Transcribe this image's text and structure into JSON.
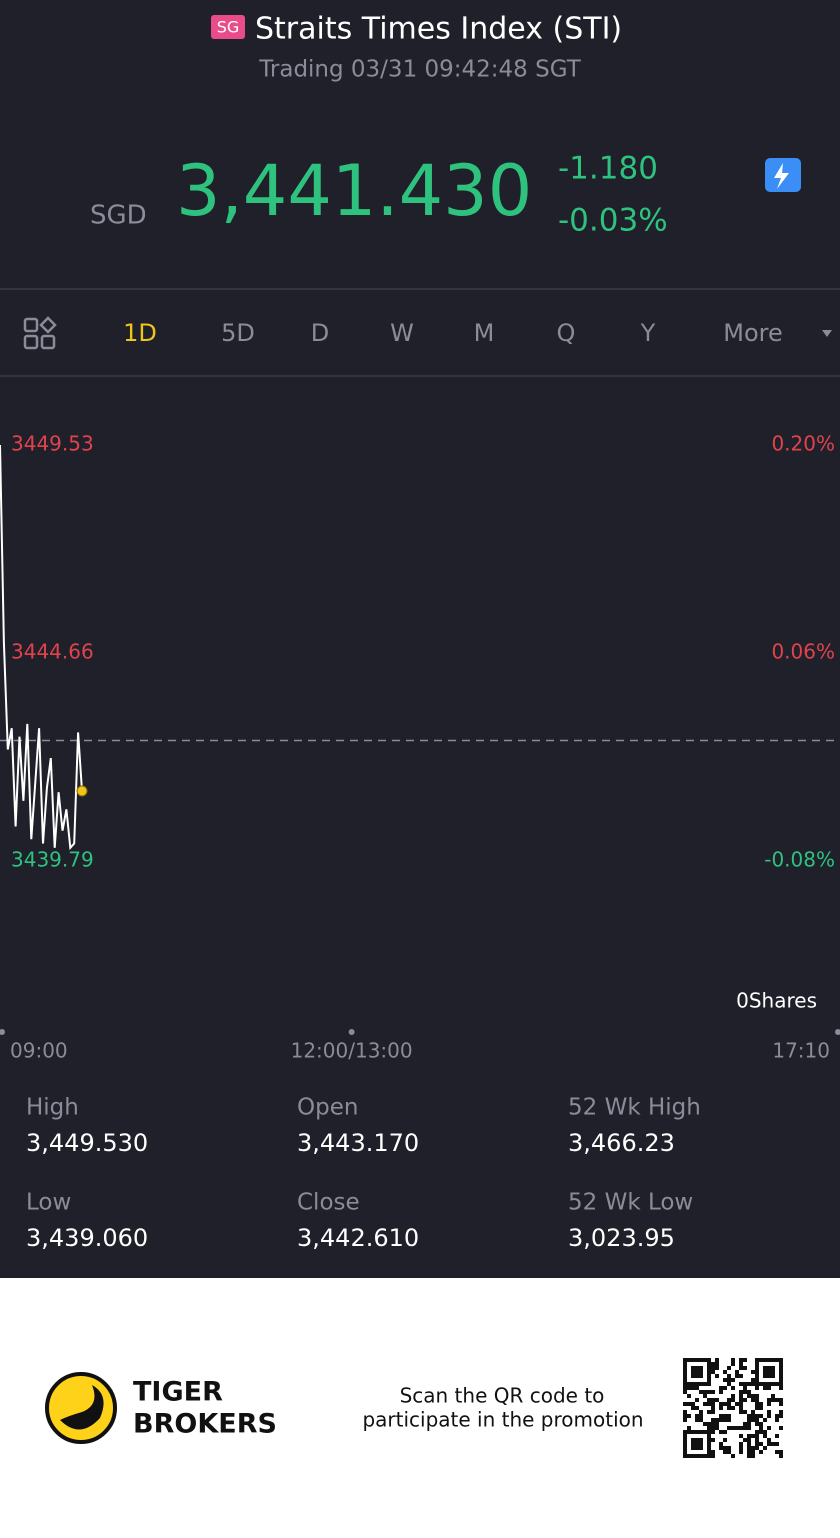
{
  "header": {
    "badge": "SG",
    "title": "Straits Times Index (STI)",
    "status": "Trading 03/31 09:42:48 SGT"
  },
  "quote": {
    "currency": "SGD",
    "price": "3,441.430",
    "change": "-1.180",
    "change_pct": "-0.03%"
  },
  "tabs": [
    "1D",
    "5D",
    "D",
    "W",
    "M",
    "Q",
    "Y",
    "More"
  ],
  "active_tab": 0,
  "chart_data": {
    "type": "line",
    "x": [
      "09:00",
      "09:02",
      "09:04",
      "09:06",
      "09:08",
      "09:10",
      "09:12",
      "09:14",
      "09:16",
      "09:18",
      "09:20",
      "09:22",
      "09:24",
      "09:26",
      "09:28",
      "09:30",
      "09:32",
      "09:34",
      "09:36",
      "09:38",
      "09:40",
      "09:42"
    ],
    "values": [
      3449.53,
      3444.9,
      3442.4,
      3442.9,
      3440.6,
      3442.7,
      3441.2,
      3443.0,
      3440.3,
      3441.6,
      3442.9,
      3440.2,
      3441.5,
      3442.2,
      3440.1,
      3441.4,
      3440.5,
      3441.0,
      3440.1,
      3440.2,
      3442.8,
      3441.43
    ],
    "color": "#ffffff",
    "baseline": 3442.61,
    "ylim": [
      3439.79,
      3449.53
    ],
    "yticks": [
      3449.53,
      3444.66,
      3439.79
    ],
    "y2lim": [
      -0.08,
      0.2
    ],
    "y2ticks": [
      {
        "value": 0.2,
        "label": "0.20%"
      },
      {
        "value": 0.06,
        "label": "0.06%"
      },
      {
        "value": -0.08,
        "label": "-0.08%"
      }
    ],
    "xticks": [
      "09:00",
      "12:00/13:00",
      "17:10"
    ],
    "volume_label": "0Shares"
  },
  "stats": [
    {
      "label": "High",
      "value": "3,449.530"
    },
    {
      "label": "Open",
      "value": "3,443.170"
    },
    {
      "label": "52 Wk High",
      "value": "3,466.23"
    },
    {
      "label": "Low",
      "value": "3,439.060"
    },
    {
      "label": "Close",
      "value": "3,442.610"
    },
    {
      "label": "52 Wk Low",
      "value": "3,023.95"
    }
  ],
  "promo": {
    "brand_line1": "TIGER",
    "brand_line2": "BROKERS",
    "text_line1": "Scan the QR code to",
    "text_line2": "participate in the promotion"
  }
}
